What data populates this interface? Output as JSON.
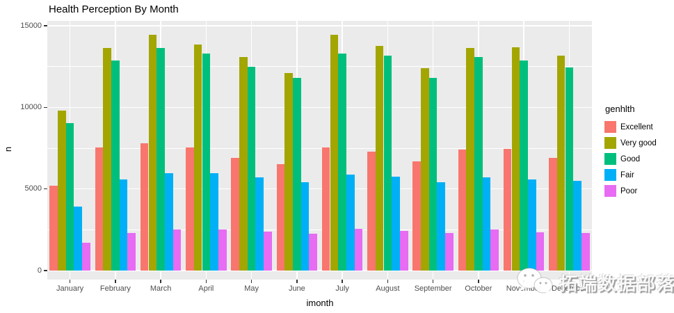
{
  "title": "Health Perception By Month",
  "panel": {
    "bg": "#EBEBEB",
    "grid_color": "#FFFFFF"
  },
  "watermark": {
    "text": "拓端数据部落",
    "logo": "wechat-logo"
  },
  "chart_data": {
    "type": "bar",
    "title": "Health Perception By Month",
    "xlabel": "imonth",
    "ylabel": "n",
    "legend_title": "genhlth",
    "legend_position": "right",
    "grid": true,
    "ylim": [
      0,
      15000
    ],
    "yticks": [
      0,
      5000,
      10000,
      15000
    ],
    "yticks_minor": [
      2500,
      7500,
      12500
    ],
    "categories": [
      "January",
      "February",
      "March",
      "April",
      "May",
      "June",
      "July",
      "August",
      "September",
      "October",
      "November",
      "December"
    ],
    "series": [
      {
        "name": "Excellent",
        "color": "#F8766D",
        "values": [
          5200,
          7550,
          7800,
          7550,
          6900,
          6500,
          7550,
          7300,
          6700,
          7400,
          7450,
          6900
        ]
      },
      {
        "name": "Very good",
        "color": "#A3A500",
        "values": [
          9800,
          13650,
          14450,
          13850,
          13100,
          12100,
          14450,
          13750,
          12400,
          13650,
          13700,
          13150
        ]
      },
      {
        "name": "Good",
        "color": "#00BF7D",
        "values": [
          9050,
          12850,
          13650,
          13300,
          12500,
          11800,
          13300,
          13150,
          11800,
          13100,
          12850,
          12450
        ]
      },
      {
        "name": "Fair",
        "color": "#00B0F6",
        "values": [
          3900,
          5600,
          5950,
          5950,
          5700,
          5400,
          5900,
          5750,
          5400,
          5700,
          5600,
          5500
        ]
      },
      {
        "name": "Poor",
        "color": "#E76BF3",
        "values": [
          1700,
          2300,
          2500,
          2500,
          2400,
          2250,
          2550,
          2450,
          2300,
          2500,
          2350,
          2300
        ]
      }
    ]
  }
}
